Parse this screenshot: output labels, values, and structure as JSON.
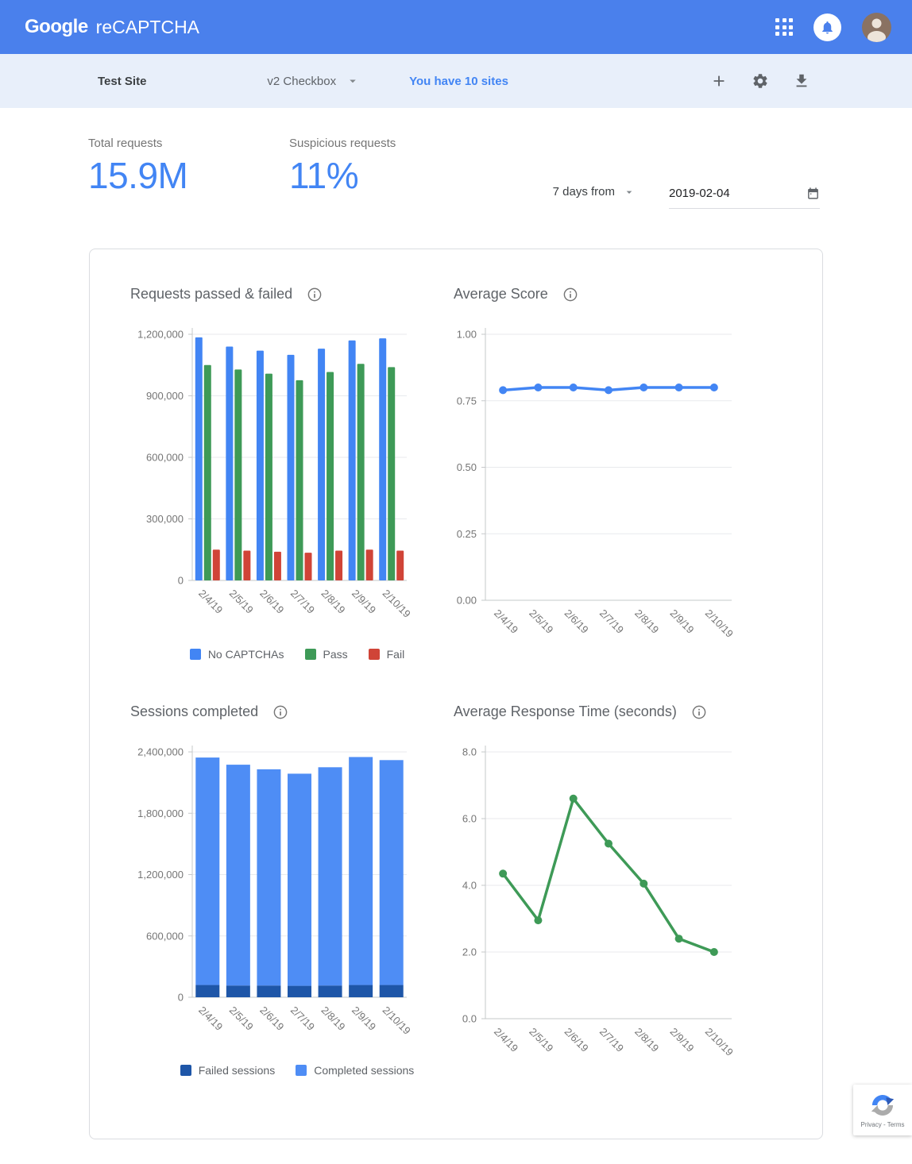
{
  "header": {
    "logo": "Google",
    "product": "reCAPTCHA"
  },
  "toolbar": {
    "site_name": "Test Site",
    "site_type": "v2 Checkbox",
    "sites_link": "You have 10 sites"
  },
  "stats": [
    {
      "label": "Total requests",
      "value": "15.9M"
    },
    {
      "label": "Suspicious requests",
      "value": "11%"
    }
  ],
  "date_filter": {
    "range_label": "7 days from",
    "date_value": "2019-02-04"
  },
  "icons": {
    "apps_grid": "apps-grid-icon",
    "notifications": "bell-icon",
    "account": "avatar",
    "add_site": "plus-icon",
    "settings": "gear-icon",
    "download": "download-icon",
    "dropdown": "arrow-drop-down-icon",
    "calendar": "calendar-icon",
    "info": "info-icon"
  },
  "colors": {
    "header_blue": "#4a80ec",
    "toolbar_bg": "#e8effa",
    "accent_blue": "#4285f4",
    "bar_blue": "#4285f4",
    "bar_green": "#3e9a57",
    "bar_red": "#d04437",
    "failed_dark_blue": "#1e56a8",
    "completed_light_blue": "#4e8df5"
  },
  "badge": {
    "label": "Privacy - Terms"
  },
  "chart_data": [
    {
      "id": "requests-passed-failed",
      "type": "bar",
      "title": "Requests passed & failed",
      "categories": [
        "2/4/19",
        "2/5/19",
        "2/6/19",
        "2/7/19",
        "2/8/19",
        "2/9/19",
        "2/10/19"
      ],
      "series": [
        {
          "name": "No CAPTCHAs",
          "color": "#4285f4",
          "values": [
            1185000,
            1140000,
            1120000,
            1100000,
            1130000,
            1170000,
            1180000
          ]
        },
        {
          "name": "Pass",
          "color": "#3e9a57",
          "values": [
            1050000,
            1028000,
            1008000,
            976000,
            1016000,
            1056000,
            1040000
          ]
        },
        {
          "name": "Fail",
          "color": "#d04437",
          "values": [
            150000,
            145000,
            140000,
            135000,
            145000,
            150000,
            145000
          ]
        }
      ],
      "ylim": [
        0,
        1200000
      ],
      "yticks": [
        0,
        300000,
        600000,
        900000,
        1200000
      ],
      "ytick_labels": [
        "0",
        "300,000",
        "600,000",
        "900,000",
        "1,200,000"
      ],
      "grid": true,
      "legend": "bottom"
    },
    {
      "id": "average-score",
      "type": "line",
      "title": "Average Score",
      "categories": [
        "2/4/19",
        "2/5/19",
        "2/6/19",
        "2/7/19",
        "2/8/19",
        "2/9/19",
        "2/10/19"
      ],
      "series": [
        {
          "name": "Average score",
          "color": "#4285f4",
          "values": [
            0.79,
            0.8,
            0.8,
            0.79,
            0.8,
            0.8,
            0.8
          ]
        }
      ],
      "ylim": [
        0,
        1
      ],
      "yticks": [
        0,
        0.25,
        0.5,
        0.75,
        1
      ],
      "ytick_labels": [
        "0.00",
        "0.25",
        "0.50",
        "0.75",
        "1.00"
      ],
      "grid": true,
      "legend": "none"
    },
    {
      "id": "sessions-completed",
      "type": "stacked-bar",
      "title": "Sessions completed",
      "categories": [
        "2/4/19",
        "2/5/19",
        "2/6/19",
        "2/7/19",
        "2/8/19",
        "2/9/19",
        "2/10/19"
      ],
      "series": [
        {
          "name": "Failed sessions",
          "color": "#1e56a8",
          "values": [
            120000,
            115000,
            115000,
            112000,
            115000,
            120000,
            120000
          ]
        },
        {
          "name": "Completed sessions",
          "color": "#4e8df5",
          "values": [
            2225000,
            2160000,
            2115000,
            2075000,
            2135000,
            2230000,
            2200000
          ]
        }
      ],
      "ylim": [
        0,
        2400000
      ],
      "yticks": [
        0,
        600000,
        1200000,
        1800000,
        2400000
      ],
      "ytick_labels": [
        "0",
        "600,000",
        "1,200,000",
        "1,800,000",
        "2,400,000"
      ],
      "grid": true,
      "legend": "bottom"
    },
    {
      "id": "average-response-time",
      "type": "line",
      "title": "Average Response Time (seconds)",
      "categories": [
        "2/4/19",
        "2/5/19",
        "2/6/19",
        "2/7/19",
        "2/8/19",
        "2/9/19",
        "2/10/19"
      ],
      "series": [
        {
          "name": "Average response time",
          "color": "#3e9a57",
          "values": [
            4.35,
            2.95,
            6.6,
            5.25,
            4.05,
            2.4,
            2.0
          ]
        }
      ],
      "ylim": [
        0,
        8
      ],
      "yticks": [
        0,
        2,
        4,
        6,
        8
      ],
      "ytick_labels": [
        "0.0",
        "2.0",
        "4.0",
        "6.0",
        "8.0"
      ],
      "grid": true,
      "legend": "none"
    }
  ]
}
